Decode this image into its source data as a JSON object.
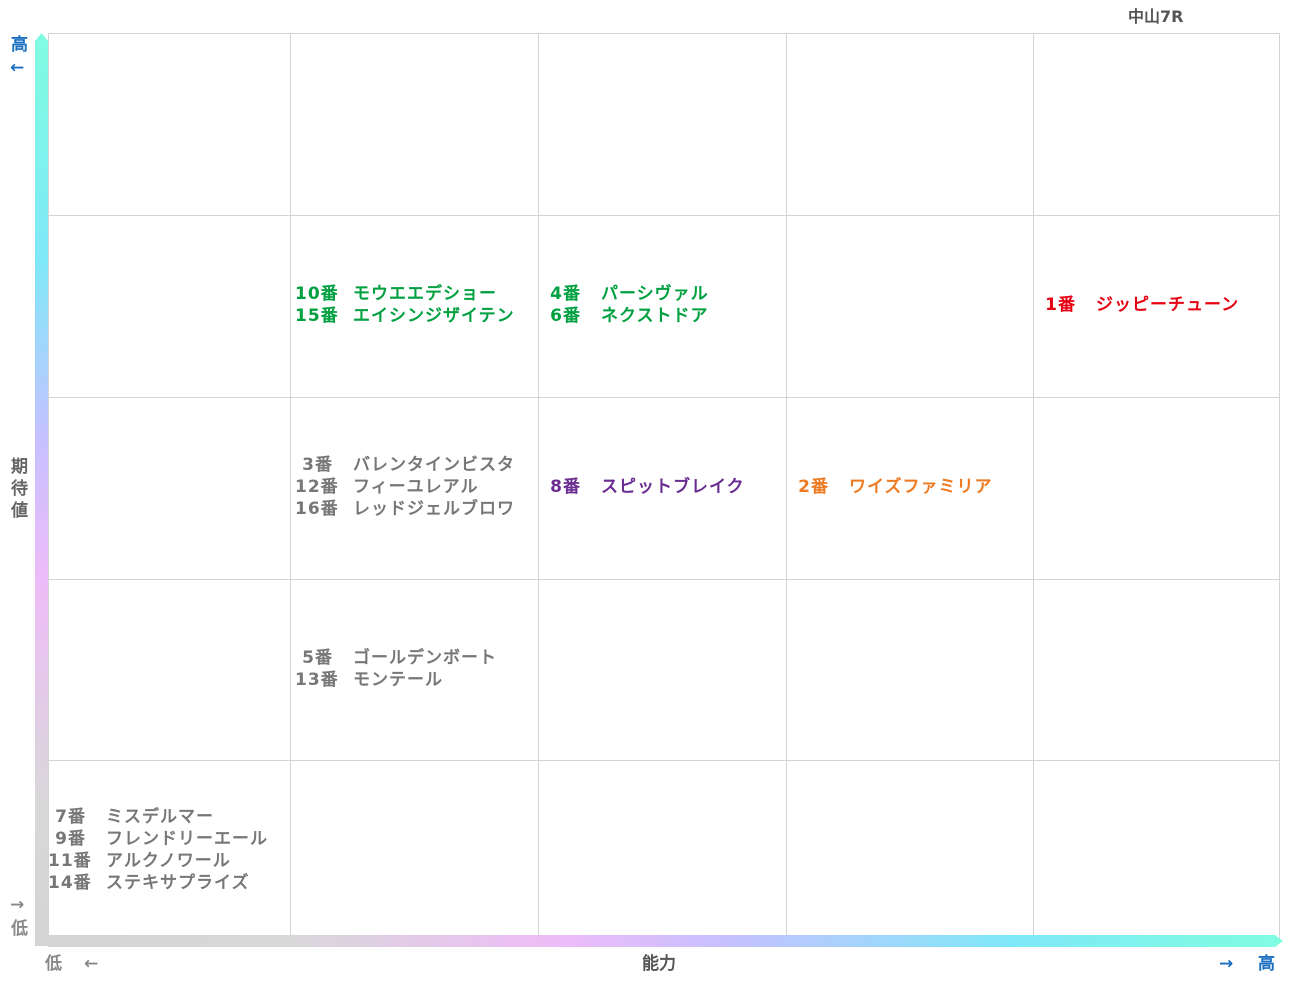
{
  "title": "中山7R",
  "chart_data": {
    "type": "table",
    "title": "中山7R",
    "xlabel": "能力",
    "ylabel": "期待値",
    "x_low": "低",
    "x_high": "高",
    "y_low": "低",
    "y_high": "高",
    "x_arrow_low": "←",
    "x_arrow_high": "→",
    "y_arrow_high": "←",
    "y_arrow_low": "→",
    "levels": 5,
    "colors": {
      "green": "#00a040",
      "red": "#e60012",
      "purple": "#6a2c91",
      "orange": "#ee7a22",
      "gray": "#777777",
      "axis_label": "#1a6fc0"
    },
    "cells": [
      {
        "ability": 2,
        "expectation": 4,
        "color": "#00a040",
        "entries": [
          {
            "num": "10番",
            "name": "モウエエデショー"
          },
          {
            "num": "15番",
            "name": "エイシンジザイテン"
          }
        ]
      },
      {
        "ability": 3,
        "expectation": 4,
        "color": "#00a040",
        "entries": [
          {
            "num": "4番",
            "name": "パーシヴァル"
          },
          {
            "num": "6番",
            "name": "ネクストドア"
          }
        ]
      },
      {
        "ability": 5,
        "expectation": 4,
        "color": "#e60012",
        "entries": [
          {
            "num": "1番",
            "name": "ジッピーチューン"
          }
        ]
      },
      {
        "ability": 2,
        "expectation": 3,
        "color": "#777777",
        "entries": [
          {
            "num": "3番",
            "name": "バレンタインビスタ"
          },
          {
            "num": "12番",
            "name": "フィーユレアル"
          },
          {
            "num": "16番",
            "name": "レッドジェルブロワ"
          }
        ]
      },
      {
        "ability": 3,
        "expectation": 3,
        "color": "#6a2c91",
        "entries": [
          {
            "num": "8番",
            "name": "スピットブレイク"
          }
        ]
      },
      {
        "ability": 4,
        "expectation": 3,
        "color": "#ee7a22",
        "entries": [
          {
            "num": "2番",
            "name": "ワイズファミリア"
          }
        ]
      },
      {
        "ability": 2,
        "expectation": 2,
        "color": "#777777",
        "entries": [
          {
            "num": "5番",
            "name": "ゴールデンボート"
          },
          {
            "num": "13番",
            "name": "モンテール"
          }
        ]
      },
      {
        "ability": 1,
        "expectation": 1,
        "color": "#777777",
        "entries": [
          {
            "num": "7番",
            "name": "ミスデルマー"
          },
          {
            "num": "9番",
            "name": "フレンドリーエール"
          },
          {
            "num": "11番",
            "name": "アルクノワール"
          },
          {
            "num": "14番",
            "name": "ステキサプライズ"
          }
        ]
      }
    ]
  }
}
